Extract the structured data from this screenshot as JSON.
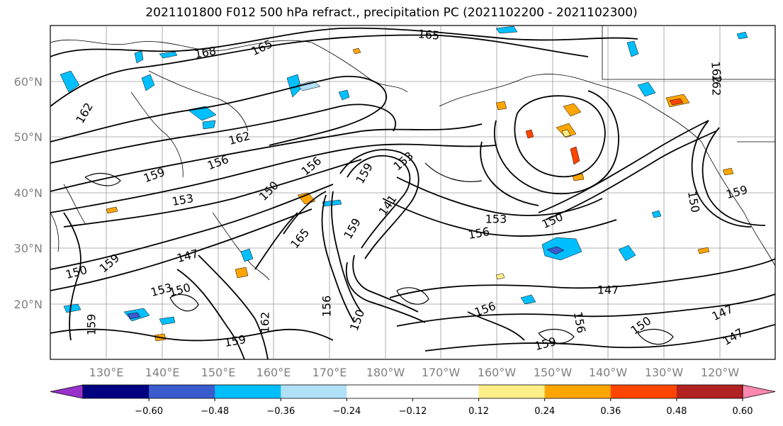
{
  "title": "2021101800 F012 500 hPa refract., precipitation PC (2021102200 - 2021102300)",
  "lat_labels": [
    "60°N",
    "50°N",
    "40°N",
    "30°N",
    "20°N"
  ],
  "lon_labels": [
    "130°E",
    "140°E",
    "150°E",
    "160°E",
    "170°E",
    "180°W",
    "170°W",
    "160°W",
    "150°W",
    "140°W",
    "130°W",
    "120°W"
  ],
  "colorbar": {
    "colors": [
      "#9932cc",
      "#000080",
      "#3a5bcc",
      "#00bfff",
      "#b0e0f8",
      "#ffffff",
      "#ffffff",
      "#ffee88",
      "#ffa500",
      "#ff4500",
      "#b22222",
      "#ff88b0"
    ],
    "tick_labels": [
      "-0.60",
      "-0.48",
      "-0.36",
      "-0.24",
      "-0.12",
      "0.12",
      "0.24",
      "0.36",
      "0.48",
      "0.60"
    ]
  },
  "contour_labels": [
    {
      "text": "168"
    },
    {
      "text": "165"
    },
    {
      "text": "165"
    },
    {
      "text": "162"
    },
    {
      "text": "162"
    },
    {
      "text": "162"
    },
    {
      "text": "159"
    },
    {
      "text": "156"
    },
    {
      "text": "156"
    },
    {
      "text": "153"
    },
    {
      "text": "150"
    },
    {
      "text": "159"
    },
    {
      "text": "147"
    },
    {
      "text": "150"
    },
    {
      "text": "159"
    },
    {
      "text": "153"
    },
    {
      "text": "150"
    },
    {
      "text": "165"
    },
    {
      "text": "159"
    },
    {
      "text": "141"
    },
    {
      "text": "153"
    },
    {
      "text": "156"
    },
    {
      "text": "150"
    },
    {
      "text": "147"
    },
    {
      "text": "156"
    },
    {
      "text": "150"
    },
    {
      "text": "147"
    },
    {
      "text": "147"
    },
    {
      "text": "159"
    },
    {
      "text": "150"
    },
    {
      "text": "159"
    },
    {
      "text": "162"
    },
    {
      "text": "159"
    },
    {
      "text": "156"
    },
    {
      "text": "162"
    },
    {
      "text": "159"
    },
    {
      "text": "150"
    },
    {
      "text": "156"
    },
    {
      "text": "153"
    }
  ]
}
